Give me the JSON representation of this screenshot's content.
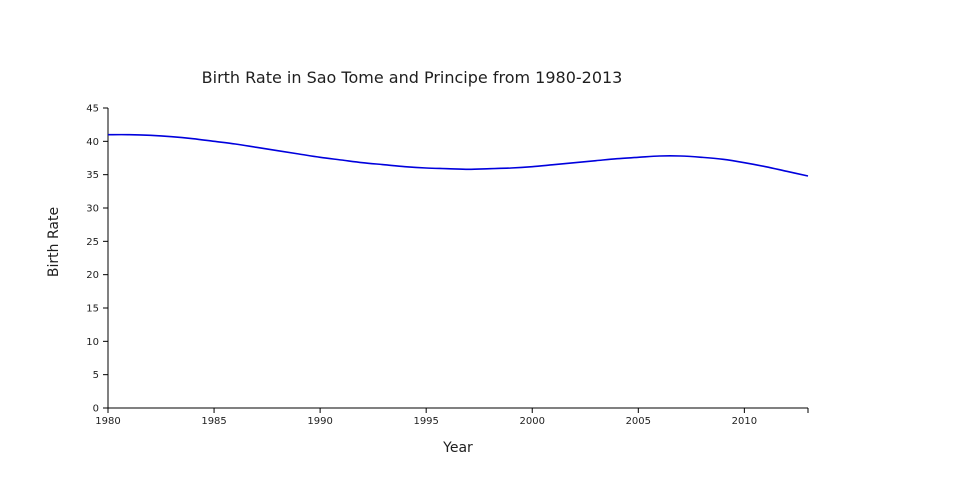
{
  "chart_data": {
    "type": "line",
    "title": "Birth Rate in Sao Tome and Principe from 1980-2013",
    "xlabel": "Year",
    "ylabel": "Birth Rate",
    "xlim": [
      1980,
      2013
    ],
    "ylim": [
      0,
      45
    ],
    "x_ticks": [
      1980,
      1985,
      1990,
      1995,
      2000,
      2005,
      2010
    ],
    "y_ticks": [
      0,
      5,
      10,
      15,
      20,
      25,
      30,
      35,
      40,
      45
    ],
    "grid": false,
    "line_color": "#0000dd",
    "series": [
      {
        "x": [
          1980,
          1981,
          1982,
          1983,
          1984,
          1985,
          1986,
          1987,
          1988,
          1989,
          1990,
          1991,
          1992,
          1993,
          1994,
          1995,
          1996,
          1997,
          1998,
          1999,
          2000,
          2001,
          2002,
          2003,
          2004,
          2005,
          2006,
          2007,
          2008,
          2009,
          2010,
          2011,
          2012,
          2013
        ],
        "values": [
          41.0,
          41.0,
          40.9,
          40.7,
          40.4,
          40.0,
          39.6,
          39.1,
          38.6,
          38.1,
          37.6,
          37.2,
          36.8,
          36.5,
          36.2,
          36.0,
          35.9,
          35.8,
          35.9,
          36.0,
          36.2,
          36.5,
          36.8,
          37.1,
          37.4,
          37.6,
          37.8,
          37.8,
          37.6,
          37.3,
          36.8,
          36.2,
          35.5,
          34.8
        ]
      }
    ]
  }
}
